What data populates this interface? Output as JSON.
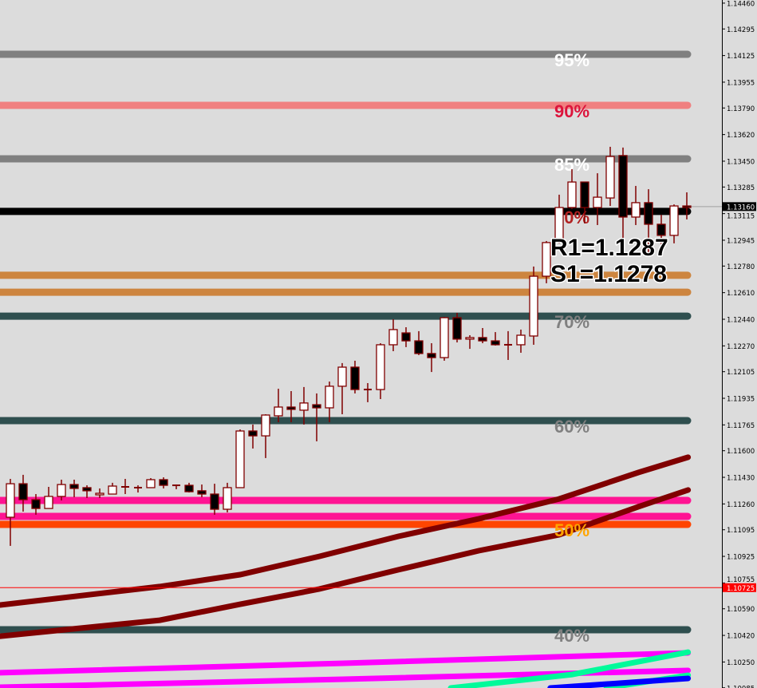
{
  "chart_data": {
    "type": "candlestick",
    "ylim": [
      1.100838,
      1.1448
    ],
    "background": "#dcdcdc",
    "candle_colors": {
      "bull_body": "#ffffff",
      "bear_body": "#000000",
      "outline": "#800000"
    },
    "candles": [
      [
        1.11175,
        1.1142,
        1.10992,
        1.11389
      ],
      [
        1.11389,
        1.11446,
        1.11211,
        1.11287
      ],
      [
        1.11287,
        1.11323,
        1.11191,
        1.11231
      ],
      [
        1.11231,
        1.11369,
        1.11231,
        1.11308
      ],
      [
        1.11308,
        1.11415,
        1.11282,
        1.11384
      ],
      [
        1.11384,
        1.11415,
        1.11303,
        1.11359
      ],
      [
        1.11364,
        1.11379,
        1.11298,
        1.11344
      ],
      [
        1.11318,
        1.11359,
        1.11298,
        1.11328
      ],
      [
        1.11323,
        1.11395,
        1.11323,
        1.11374
      ],
      [
        1.11369,
        1.1142,
        1.11323,
        1.11369
      ],
      [
        1.11364,
        1.11379,
        1.11333,
        1.11364
      ],
      [
        1.11364,
        1.11425,
        1.11364,
        1.11415
      ],
      [
        1.11415,
        1.1143,
        1.11359,
        1.11379
      ],
      [
        1.11379,
        1.11384,
        1.11354,
        1.11379
      ],
      [
        1.11379,
        1.11395,
        1.11333,
        1.11338
      ],
      [
        1.11344,
        1.11384,
        1.11303,
        1.11323
      ],
      [
        1.11323,
        1.11389,
        1.11191,
        1.11226
      ],
      [
        1.11226,
        1.11395,
        1.11206,
        1.11364
      ],
      [
        1.11364,
        1.11736,
        1.11364,
        1.11726
      ],
      [
        1.11726,
        1.11767,
        1.11614,
        1.11695
      ],
      [
        1.11695,
        1.11833,
        1.11553,
        1.11828
      ],
      [
        1.11823,
        1.11996,
        1.11782,
        1.11879
      ],
      [
        1.11879,
        1.11981,
        1.11782,
        1.11864
      ],
      [
        1.11859,
        1.12007,
        1.11767,
        1.11905
      ],
      [
        1.11894,
        1.11966,
        1.1166,
        1.11874
      ],
      [
        1.11874,
        1.12042,
        1.11782,
        1.12012
      ],
      [
        1.12012,
        1.1216,
        1.11833,
        1.12134
      ],
      [
        1.12134,
        1.12175,
        1.11966,
        1.11991
      ],
      [
        1.11991,
        1.12032,
        1.1191,
        1.11991
      ],
      [
        1.11991,
        1.12287,
        1.1193,
        1.12277
      ],
      [
        1.12277,
        1.1244,
        1.12236,
        1.12374
      ],
      [
        1.12353,
        1.12389,
        1.12262,
        1.12302
      ],
      [
        1.12302,
        1.12364,
        1.12211,
        1.12221
      ],
      [
        1.12221,
        1.12287,
        1.12103,
        1.12195
      ],
      [
        1.12195,
        1.12455,
        1.12175,
        1.1245
      ],
      [
        1.1245,
        1.12481,
        1.12292,
        1.12313
      ],
      [
        1.12313,
        1.12338,
        1.12251,
        1.12323
      ],
      [
        1.12323,
        1.12384,
        1.12287,
        1.12302
      ],
      [
        1.12302,
        1.12358,
        1.12272,
        1.12277
      ],
      [
        1.12277,
        1.12364,
        1.1218,
        1.12277
      ],
      [
        1.12277,
        1.12374,
        1.12226,
        1.12338
      ],
      [
        1.12333,
        1.12777,
        1.12277,
        1.12715
      ],
      [
        1.12715,
        1.1294,
        1.1267,
        1.1293
      ],
      [
        1.12935,
        1.13236,
        1.12925,
        1.13154
      ],
      [
        1.13154,
        1.13399,
        1.13144,
        1.13317
      ],
      [
        1.13317,
        1.13317,
        1.13052,
        1.13154
      ],
      [
        1.13154,
        1.13373,
        1.13042,
        1.1322
      ],
      [
        1.13215,
        1.13542,
        1.13164,
        1.1348
      ],
      [
        1.13486,
        1.13537,
        1.12863,
        1.13093
      ],
      [
        1.13093,
        1.13292,
        1.13042,
        1.13185
      ],
      [
        1.13185,
        1.13271,
        1.12868,
        1.13047
      ],
      [
        1.13047,
        1.13108,
        1.12919,
        1.12976
      ],
      [
        1.12976,
        1.13174,
        1.12925,
        1.13164
      ],
      [
        1.13164,
        1.13251,
        1.13078,
        1.13154
      ]
    ],
    "levels": [
      {
        "price": 1.14133,
        "color": "#808080",
        "label": "95%",
        "label_color": "#ffffff"
      },
      {
        "price": 1.13807,
        "color": "#f08080",
        "label": "90%",
        "label_color": "#dc143c"
      },
      {
        "price": 1.13465,
        "color": "#808080",
        "label": "85%",
        "label_color": "#ffffff"
      },
      {
        "price": 1.13129,
        "color": "#000000",
        "label": "80%",
        "label_color": "#b22222"
      },
      {
        "price": 1.12721,
        "color": "#cd853f",
        "label": "",
        "label_color": ""
      },
      {
        "price": 1.12613,
        "color": "#cd853f",
        "label": "",
        "label_color": ""
      },
      {
        "price": 1.1246,
        "color": "#2f4f4f",
        "label": "70%",
        "label_color": "#808080"
      },
      {
        "price": 1.11792,
        "color": "#2f4f4f",
        "label": "60%",
        "label_color": "#808080"
      },
      {
        "price": 1.11282,
        "color": "#ff1493",
        "label": "",
        "label_color": ""
      },
      {
        "price": 1.1118,
        "color": "#ff1493",
        "label": "",
        "label_color": ""
      },
      {
        "price": 1.11129,
        "color": "#ff4500",
        "label": "50%",
        "label_color": "#ffa500"
      },
      {
        "price": 1.10456,
        "color": "#2f4f4f",
        "label": "40%",
        "label_color": "#808080"
      }
    ],
    "moving_averages": [
      {
        "color": "#800000",
        "points": [
          [
            0.2,
            1.10614
          ],
          [
            12.7,
            1.10732
          ],
          [
            19,
            1.10808
          ],
          [
            25.2,
            1.10925
          ],
          [
            31.4,
            1.11053
          ],
          [
            37.7,
            1.11165
          ],
          [
            44,
            1.11292
          ],
          [
            50.2,
            1.11461
          ],
          [
            54.1,
            1.11558
          ]
        ]
      },
      {
        "color": "#800000",
        "points": [
          [
            0.2,
            1.10415
          ],
          [
            12.7,
            1.10517
          ],
          [
            19,
            1.10619
          ],
          [
            25.2,
            1.10716
          ],
          [
            31.4,
            1.10839
          ],
          [
            37.7,
            1.10961
          ],
          [
            44,
            1.11063
          ],
          [
            50.2,
            1.11242
          ],
          [
            54.1,
            1.11349
          ]
        ]
      },
      {
        "color": "#ff00ff",
        "points": [
          [
            0.2,
            1.10181
          ],
          [
            27.1,
            1.10242
          ],
          [
            54.1,
            1.10308
          ]
        ]
      },
      {
        "color": "#ff00ff",
        "points": [
          [
            0.2,
            1.10089
          ],
          [
            27.1,
            1.1014
          ],
          [
            54.1,
            1.10196
          ]
        ]
      },
      {
        "color": "#00fa9a",
        "points": [
          [
            35.5,
            1.10084
          ],
          [
            45,
            1.1017
          ],
          [
            54.1,
            1.10313
          ]
        ]
      },
      {
        "color": "#00fa9a",
        "points": [
          [
            47.7,
            1.10084
          ],
          [
            54.1,
            1.10165
          ]
        ]
      },
      {
        "color": "#0000ff",
        "points": [
          [
            43.3,
            1.10084
          ],
          [
            54.1,
            1.10145
          ]
        ]
      }
    ],
    "pivots": [
      {
        "text": "R1=1.1287"
      },
      {
        "text": "S1=1.1278"
      }
    ],
    "y_ticks": [
      "1.14460",
      "1.14295",
      "1.14125",
      "1.13955",
      "1.13790",
      "1.13620",
      "1.13450",
      "1.13285",
      "1.13115",
      "1.12945",
      "1.12780",
      "1.12610",
      "1.12440",
      "1.12270",
      "1.12105",
      "1.11935",
      "1.11765",
      "1.11600",
      "1.11430",
      "1.11260",
      "1.11095",
      "1.10925",
      "1.10755",
      "1.10590",
      "1.10420",
      "1.10250",
      "1.10085"
    ],
    "bid": {
      "price": "1.13160",
      "color": "#000000"
    },
    "alert_line": {
      "price": "1.10725",
      "color": "#ff0000"
    }
  }
}
